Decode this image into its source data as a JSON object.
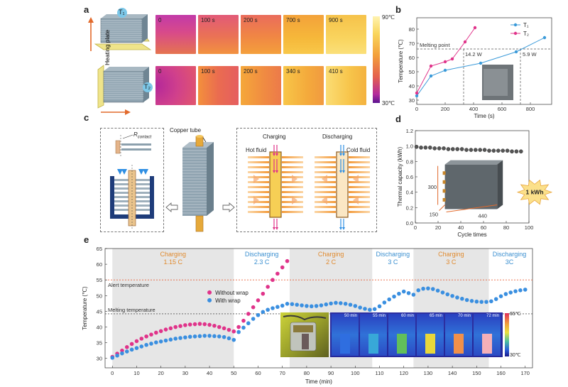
{
  "panels": {
    "a": "a",
    "b": "b",
    "c": "c",
    "d": "d",
    "e": "e"
  },
  "panel_a": {
    "sensor_top": "T₁",
    "sensor_bottom": "T₂",
    "heating_plate_label": "Heating plate",
    "row_top_times": [
      "0",
      "100 s",
      "200 s",
      "700 s",
      "900 s"
    ],
    "row_bottom_times": [
      "0",
      "100 s",
      "200 s",
      "340 s",
      "410 s"
    ],
    "colorbar_max": "90℃",
    "colorbar_min": "30℃"
  },
  "panel_c": {
    "rcontact_label": "R",
    "rcontact_sub": "contact",
    "copper_tube_label": "Copper tube",
    "charging_label": "Charging",
    "discharging_label": "Discharging",
    "hot_fluid_label": "Hot fluid",
    "cold_fluid_label": "Cold fluid"
  },
  "panel_e_inset": {
    "times": [
      "50 min",
      "55 min",
      "60 min",
      "65 min",
      "70 min",
      "72 min"
    ],
    "cbar_max": "65℃",
    "cbar_min": "30℃"
  },
  "chart_data": [
    {
      "id": "b",
      "type": "line",
      "xlabel": "Time (s)",
      "ylabel": "Temperature (℃)",
      "xlim": [
        0,
        950
      ],
      "ylim": [
        27,
        88
      ],
      "xticks": [
        0,
        200,
        400,
        600,
        800
      ],
      "yticks": [
        30,
        40,
        50,
        60,
        70,
        80
      ],
      "series": [
        {
          "name": "T₁",
          "color": "#3a9ad9",
          "x": [
            0,
            100,
            200,
            450,
            700,
            900
          ],
          "y": [
            33,
            47,
            51,
            56,
            64,
            74
          ]
        },
        {
          "name": "T₂",
          "color": "#e0338a",
          "x": [
            0,
            100,
            200,
            250,
            340,
            410
          ],
          "y": [
            35,
            54,
            57,
            59,
            71,
            81
          ]
        }
      ],
      "reference_line": {
        "label": "Melting point",
        "y": 66
      },
      "annotations": [
        "14.2 W",
        "5.9 W"
      ]
    },
    {
      "id": "d",
      "type": "scatter",
      "xlabel": "Cycle times",
      "ylabel": "Thermal capacity (kWh)",
      "xlim": [
        0,
        100
      ],
      "ylim": [
        0,
        1.2
      ],
      "xticks": [
        0,
        20,
        40,
        60,
        80,
        100
      ],
      "yticks": [
        0.0,
        0.2,
        0.4,
        0.6,
        0.8,
        1.0,
        1.2
      ],
      "x": [
        1,
        5,
        9,
        13,
        17,
        21,
        25,
        29,
        33,
        37,
        41,
        45,
        49,
        53,
        57,
        61,
        65,
        69,
        73,
        77,
        81,
        85,
        89,
        93
      ],
      "y": [
        0.99,
        0.98,
        0.98,
        0.98,
        0.97,
        0.97,
        0.97,
        0.96,
        0.96,
        0.96,
        0.96,
        0.95,
        0.95,
        0.95,
        0.95,
        0.95,
        0.94,
        0.94,
        0.94,
        0.94,
        0.94,
        0.93,
        0.93,
        0.93
      ],
      "color": "#555555",
      "inset_dims": [
        "300",
        "150",
        "440"
      ],
      "inset_badge": "1 kWh"
    },
    {
      "id": "e",
      "type": "scatter",
      "xlabel": "Time (min)",
      "ylabel": "Temperature (℃)",
      "xlim": [
        -3,
        173
      ],
      "ylim": [
        27,
        65
      ],
      "xticks": [
        0,
        10,
        20,
        30,
        40,
        50,
        60,
        70,
        80,
        90,
        100,
        110,
        120,
        130,
        140,
        150,
        160,
        170
      ],
      "yticks": [
        30,
        35,
        40,
        45,
        50,
        55,
        60,
        65
      ],
      "legend": [
        "Without wrap",
        "With wrap"
      ],
      "alert_temperature": {
        "label": "Alert temperature",
        "y": 55
      },
      "melting_temperature": {
        "label": "Melting temperature",
        "y": 44.2
      },
      "phases": [
        {
          "name": "Charging",
          "rate": "1.15 C",
          "start": 0,
          "end": 50,
          "shaded": true,
          "color": "#e08a2e"
        },
        {
          "name": "Discharging",
          "rate": "2.3 C",
          "start": 50,
          "end": 73,
          "shaded": false,
          "color": "#3a8fd0"
        },
        {
          "name": "Charging",
          "rate": "2 C",
          "start": 73,
          "end": 107,
          "shaded": true,
          "color": "#e08a2e"
        },
        {
          "name": "Discharging",
          "rate": "3 C",
          "start": 107,
          "end": 124,
          "shaded": false,
          "color": "#3a8fd0"
        },
        {
          "name": "Charging",
          "rate": "3 C",
          "start": 124,
          "end": 155,
          "shaded": true,
          "color": "#e08a2e"
        },
        {
          "name": "Discharging",
          "rate": "3C",
          "start": 155,
          "end": 172,
          "shaded": false,
          "color": "#3a8fd0"
        }
      ],
      "series": [
        {
          "name": "Without wrap",
          "color": "#e0338a",
          "x": [
            0,
            2,
            4,
            6,
            8,
            10,
            12,
            14,
            16,
            18,
            20,
            22,
            24,
            26,
            28,
            30,
            32,
            34,
            36,
            38,
            40,
            42,
            44,
            46,
            48,
            50,
            52,
            54,
            56,
            58,
            60,
            62,
            64,
            66,
            68,
            70,
            72
          ],
          "y": [
            30.5,
            31.5,
            32.5,
            33.6,
            34.6,
            35.5,
            36.3,
            37.0,
            37.6,
            38.2,
            38.7,
            39.2,
            39.6,
            40.0,
            40.3,
            40.6,
            40.8,
            40.9,
            41.0,
            40.9,
            40.7,
            40.4,
            40.0,
            39.6,
            39.1,
            38.6,
            40.0,
            42.0,
            44.2,
            46.3,
            48.5,
            50.6,
            52.8,
            55.0,
            57.0,
            59.0,
            61.0
          ]
        },
        {
          "name": "With wrap",
          "color": "#3a8fe0",
          "x": [
            0,
            2,
            4,
            6,
            8,
            10,
            12,
            14,
            16,
            18,
            20,
            22,
            24,
            26,
            28,
            30,
            32,
            34,
            36,
            38,
            40,
            42,
            44,
            46,
            48,
            50,
            52,
            54,
            56,
            58,
            60,
            62,
            64,
            66,
            68,
            70,
            72,
            74,
            76,
            78,
            80,
            82,
            84,
            86,
            88,
            90,
            92,
            94,
            96,
            98,
            100,
            102,
            104,
            106,
            108,
            110,
            112,
            114,
            116,
            118,
            120,
            122,
            124,
            126,
            128,
            130,
            132,
            134,
            136,
            138,
            140,
            142,
            144,
            146,
            148,
            150,
            152,
            154,
            156,
            158,
            160,
            162,
            164,
            166,
            168,
            170
          ],
          "y": [
            30.2,
            30.9,
            31.6,
            32.2,
            32.8,
            33.3,
            33.8,
            34.3,
            34.7,
            35.1,
            35.4,
            35.7,
            36.0,
            36.3,
            36.5,
            36.7,
            36.9,
            37.0,
            37.1,
            37.2,
            37.2,
            37.1,
            37.0,
            36.8,
            36.4,
            35.9,
            38.4,
            39.8,
            41.2,
            42.6,
            43.8,
            44.8,
            45.5,
            46.0,
            46.4,
            46.8,
            47.4,
            47.3,
            47.1,
            46.9,
            46.7,
            46.6,
            46.7,
            46.9,
            47.2,
            47.5,
            47.7,
            47.6,
            47.4,
            47.1,
            46.7,
            46.2,
            45.8,
            45.5,
            45.7,
            46.6,
            47.8,
            48.8,
            49.7,
            50.6,
            51.3,
            50.8,
            50.3,
            51.7,
            52.2,
            52.3,
            52.1,
            51.6,
            51.0,
            50.4,
            49.9,
            49.4,
            49.0,
            48.6,
            48.3,
            48.1,
            48.0,
            48.0,
            48.2,
            48.9,
            49.8,
            50.5,
            51.0,
            51.4,
            51.7,
            51.9
          ]
        }
      ]
    }
  ]
}
